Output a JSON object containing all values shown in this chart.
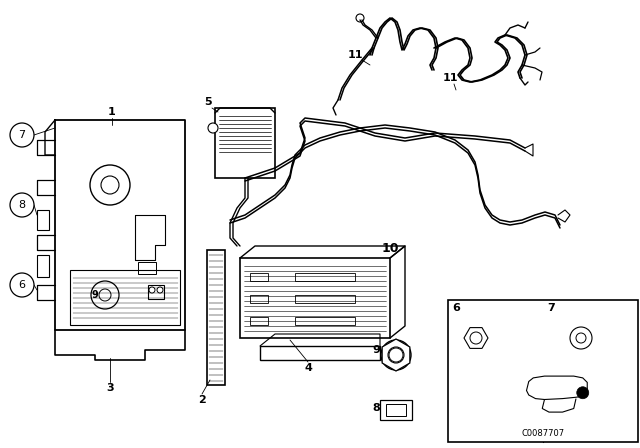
{
  "background_color": "#ffffff",
  "line_color": "#000000",
  "image_code": "C0087707",
  "fig_width": 6.4,
  "fig_height": 4.48,
  "dpi": 100
}
